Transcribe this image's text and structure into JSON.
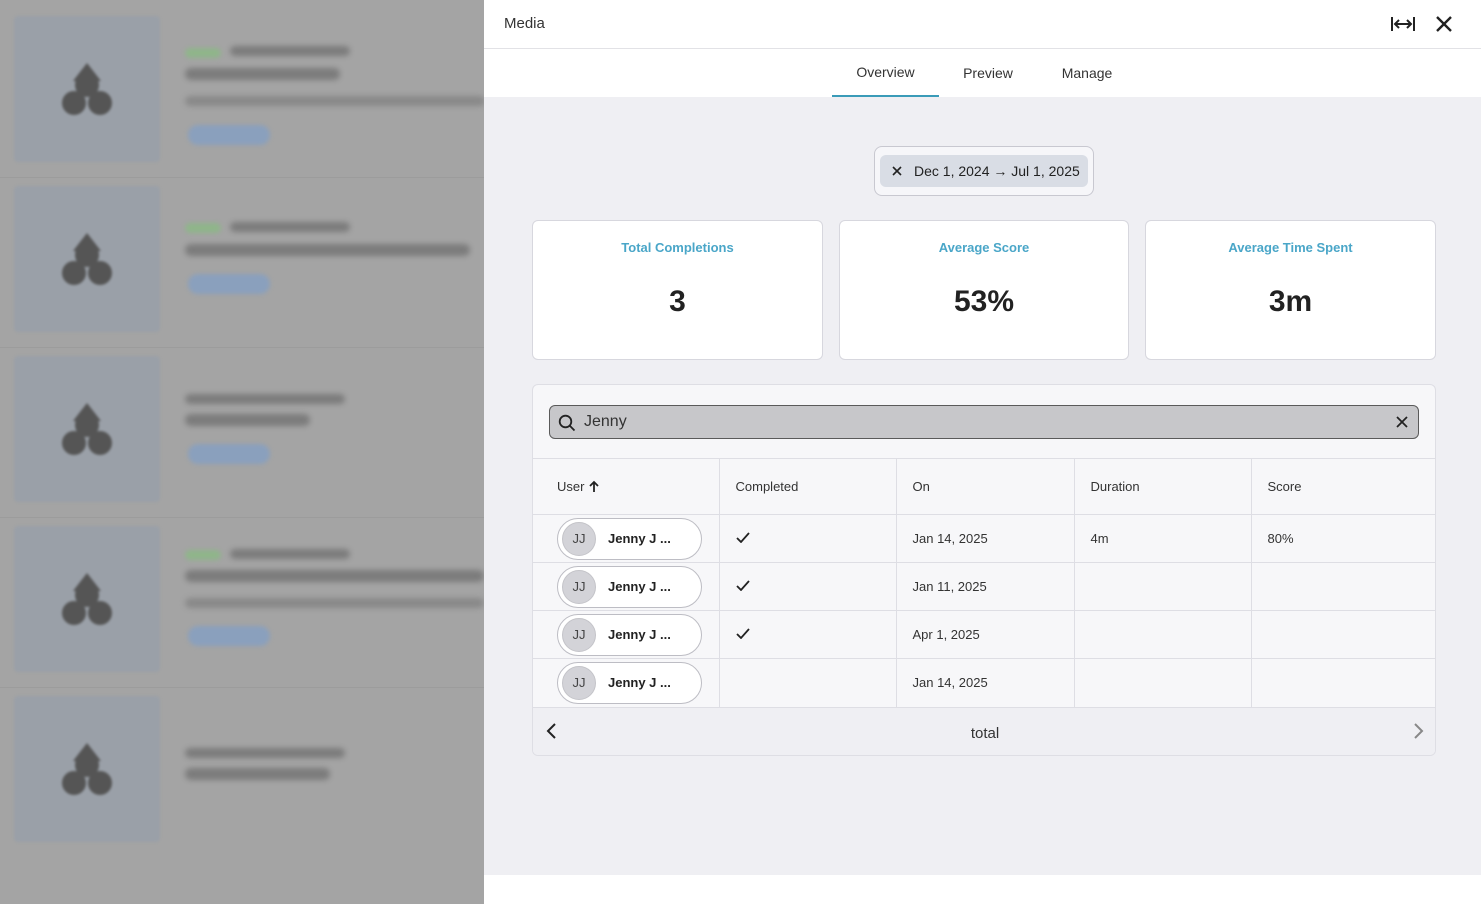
{
  "drawer": {
    "title": "Media",
    "expand_icon": "expand-horizontal-icon",
    "close_icon": "close-icon"
  },
  "tabs": [
    {
      "label": "Overview",
      "active": true
    },
    {
      "label": "Preview",
      "active": false
    },
    {
      "label": "Manage",
      "active": false
    }
  ],
  "date_filter": {
    "label": "Dec 1, 2024 → Jul 1, 2025",
    "clear_icon": "close-icon"
  },
  "stats": [
    {
      "label": "Total Completions",
      "value": "3"
    },
    {
      "label": "Average Score",
      "value": "53%"
    },
    {
      "label": "Average Time Spent",
      "value": "3m"
    }
  ],
  "search": {
    "value": "Jenny",
    "icon": "search-icon",
    "clear_icon": "close-icon"
  },
  "table": {
    "columns": [
      "User",
      "Completed",
      "On",
      "Duration",
      "Score"
    ],
    "sort_icon": "arrow-up-icon",
    "rows": [
      {
        "initials": "JJ",
        "user": "Jenny J ...",
        "completed": true,
        "on": "Jan 14, 2025",
        "duration": "4m",
        "score": "80%"
      },
      {
        "initials": "JJ",
        "user": "Jenny J ...",
        "completed": true,
        "on": "Jan 11, 2025",
        "duration": "",
        "score": ""
      },
      {
        "initials": "JJ",
        "user": "Jenny J ...",
        "completed": true,
        "on": "Apr 1, 2025",
        "duration": "",
        "score": ""
      },
      {
        "initials": "JJ",
        "user": "Jenny J ...",
        "completed": false,
        "on": "Jan 14, 2025",
        "duration": "",
        "score": ""
      }
    ]
  },
  "pager": {
    "label": "total",
    "prev_icon": "chevron-left-icon",
    "next_icon": "chevron-right-icon"
  },
  "colors": {
    "accent": "#3a9bb8",
    "stat_label": "#4aa6c8",
    "overlay": "#a4a4a4"
  }
}
